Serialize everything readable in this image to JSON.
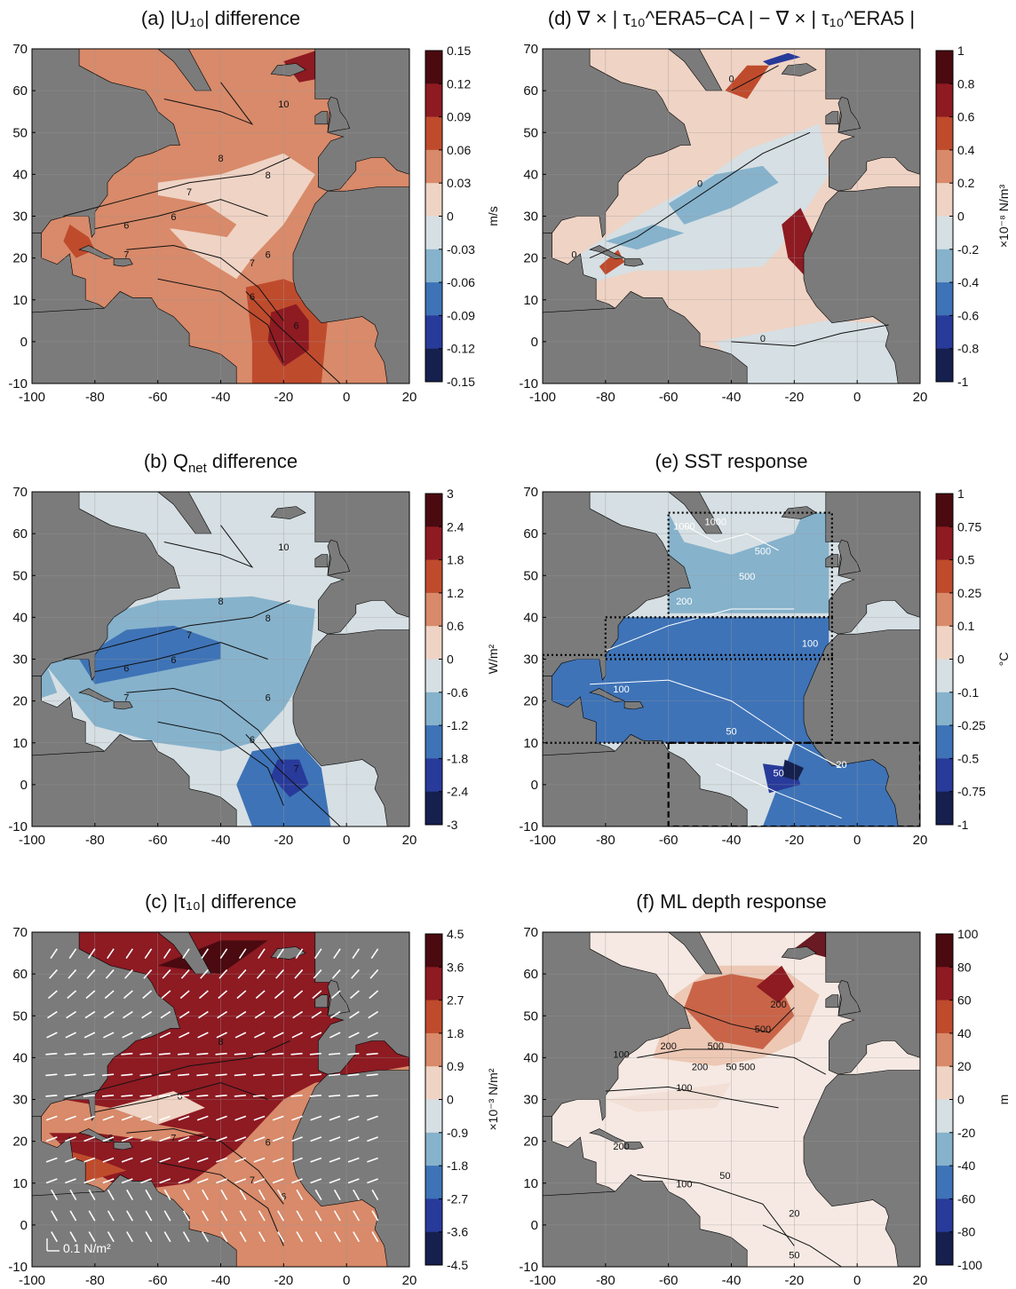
{
  "colors": {
    "land": "#7b7b7b",
    "grid": "#9a9a9a",
    "contour_black": "#111111",
    "contour_white": "#ffffff",
    "diverging_8": [
      "#16204e",
      "#283a9a",
      "#3e73b7",
      "#86b2cc",
      "#d6dfe3",
      "#efd3c4",
      "#d88a6a",
      "#bf4b2d",
      "#8e1a22",
      "#4a0a10"
    ],
    "diverging_10": [
      "#16204e",
      "#283a9a",
      "#3e73b7",
      "#86b2cc",
      "#d6dfe3",
      "#efd3c4",
      "#d88a6a",
      "#bf4b2d",
      "#8e1a22",
      "#4a0a10"
    ]
  },
  "chart_data": [
    {
      "id": "a",
      "type": "heatmap",
      "title": "(a) |U₁₀| difference",
      "xlim": [
        -100,
        20
      ],
      "ylim": [
        -10,
        70
      ],
      "xticks": [
        "-100",
        "-80",
        "-60",
        "-40",
        "-20",
        "0",
        "20"
      ],
      "yticks": [
        "-10",
        "0",
        "10",
        "20",
        "30",
        "40",
        "50",
        "60",
        "70"
      ],
      "colorbar": {
        "ticks": [
          "0.15",
          "0.12",
          "0.09",
          "0.06",
          "0.03",
          "0",
          "-0.03",
          "-0.06",
          "-0.09",
          "-0.12",
          "-0.15"
        ],
        "unit": "m/s"
      },
      "contour_labels": [
        "10",
        "8",
        "7",
        "6",
        "6",
        "7",
        "6",
        "6",
        "6",
        "7",
        "8"
      ]
    },
    {
      "id": "d",
      "type": "heatmap",
      "title": "(d) ∇ × | τ₁₀^ERA5−CA | − ∇ × | τ₁₀^ERA5 |",
      "xlim": [
        -100,
        20
      ],
      "ylim": [
        -10,
        70
      ],
      "xticks": [
        "-100",
        "-80",
        "-60",
        "-40",
        "-20",
        "0",
        "20"
      ],
      "yticks": [
        "-10",
        "0",
        "10",
        "20",
        "30",
        "40",
        "50",
        "60",
        "70"
      ],
      "colorbar": {
        "ticks": [
          "1",
          "0.8",
          "0.6",
          "0.4",
          "0.2",
          "0",
          "-0.2",
          "-0.4",
          "-0.6",
          "-0.8",
          "-1"
        ],
        "unit": "×10⁻⁸ N/m³"
      },
      "contour_labels": [
        "0",
        "0",
        "0",
        "0"
      ]
    },
    {
      "id": "b",
      "type": "heatmap",
      "title": "(b) Q",
      "title_sub": "net",
      "title_tail": " difference",
      "xlim": [
        -100,
        20
      ],
      "ylim": [
        -10,
        70
      ],
      "xticks": [
        "-100",
        "-80",
        "-60",
        "-40",
        "-20",
        "0",
        "20"
      ],
      "yticks": [
        "-10",
        "0",
        "10",
        "20",
        "30",
        "40",
        "50",
        "60",
        "70"
      ],
      "colorbar": {
        "ticks": [
          "3",
          "2.4",
          "1.8",
          "1.2",
          "0.6",
          "0",
          "-0.6",
          "-1.2",
          "-1.8",
          "-2.4",
          "-3"
        ],
        "unit": "W/m²"
      },
      "contour_labels": [
        "10",
        "8",
        "7",
        "6",
        "6",
        "7",
        "6",
        "6",
        "7",
        "8"
      ]
    },
    {
      "id": "e",
      "type": "heatmap",
      "title": "(e) SST response",
      "xlim": [
        -100,
        20
      ],
      "ylim": [
        -10,
        70
      ],
      "xticks": [
        "-100",
        "-80",
        "-60",
        "-40",
        "-20",
        "0",
        "20"
      ],
      "yticks": [
        "-10",
        "0",
        "10",
        "20",
        "30",
        "40",
        "50",
        "60",
        "70"
      ],
      "colorbar": {
        "ticks": [
          "1",
          "0.75",
          "0.5",
          "0.25",
          "0.1",
          "0",
          "-0.1",
          "-0.25",
          "-0.5",
          "-0.75",
          "-1"
        ],
        "unit": "°C"
      },
      "contour_labels": [
        "1000",
        "1000",
        "500",
        "200",
        "100",
        "50",
        "20",
        "100",
        "50",
        "500"
      ],
      "boxes": [
        {
          "lon": [
            -60,
            -8
          ],
          "lat": [
            40,
            65
          ]
        },
        {
          "lon": [
            -80,
            -8
          ],
          "lat": [
            30,
            40
          ]
        },
        {
          "lon": [
            -100,
            -8
          ],
          "lat": [
            10,
            31
          ]
        },
        {
          "lon": [
            -60,
            20
          ],
          "lat": [
            -10,
            10
          ]
        }
      ]
    },
    {
      "id": "c",
      "type": "heatmap",
      "title": "(c) |τ₁₀| difference",
      "xlim": [
        -100,
        20
      ],
      "ylim": [
        -10,
        70
      ],
      "xticks": [
        "-100",
        "-80",
        "-60",
        "-40",
        "-20",
        "0",
        "20"
      ],
      "yticks": [
        "-10",
        "0",
        "10",
        "20",
        "30",
        "40",
        "50",
        "60",
        "70"
      ],
      "colorbar": {
        "ticks": [
          "4.5",
          "3.6",
          "2.7",
          "1.8",
          "0.9",
          "0",
          "-0.9",
          "-1.8",
          "-2.7",
          "-3.6",
          "-4.5"
        ],
        "unit": "×10⁻³ N/m²"
      },
      "contour_labels": [
        "8",
        "6",
        "7",
        "6",
        "6",
        "7",
        "6"
      ],
      "vector_legend": "0.1 N/m²"
    },
    {
      "id": "f",
      "type": "heatmap",
      "title": "(f) ML depth response",
      "xlim": [
        -100,
        20
      ],
      "ylim": [
        -10,
        70
      ],
      "xticks": [
        "-100",
        "-80",
        "-60",
        "-40",
        "-20",
        "0",
        "20"
      ],
      "yticks": [
        "-10",
        "0",
        "10",
        "20",
        "30",
        "40",
        "50",
        "60",
        "70"
      ],
      "colorbar": {
        "ticks": [
          "100",
          "80",
          "60",
          "40",
          "20",
          "0",
          "-20",
          "-40",
          "-60",
          "-80",
          "-100"
        ],
        "unit": "m"
      },
      "contour_labels": [
        "100",
        "200",
        "500",
        "200",
        "500",
        "100",
        "200",
        "100",
        "50",
        "50",
        "20",
        "50",
        "200",
        "500"
      ]
    }
  ]
}
